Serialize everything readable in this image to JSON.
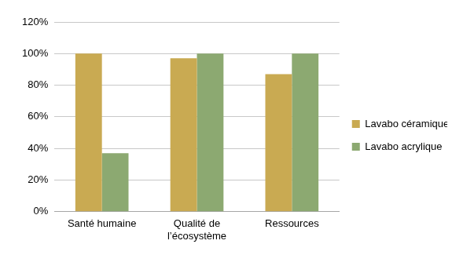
{
  "chart_data": {
    "type": "bar",
    "categories": [
      "Santé humaine",
      "Qualité de l’écosystème",
      "Ressources"
    ],
    "series": [
      {
        "name": "Lavabo céramique",
        "color": "#c9aa52",
        "values": [
          100,
          97,
          87
        ]
      },
      {
        "name": "Lavabo acrylique",
        "color": "#8ca971",
        "values": [
          37,
          100,
          100
        ]
      }
    ],
    "ylim": [
      0,
      120
    ],
    "yticks": [
      {
        "value": 0,
        "label": "0%"
      },
      {
        "value": 20,
        "label": "20%"
      },
      {
        "value": 40,
        "label": "40%"
      },
      {
        "value": 60,
        "label": "60%"
      },
      {
        "value": 80,
        "label": "80%"
      },
      {
        "value": 100,
        "label": "100%"
      },
      {
        "value": 120,
        "label": "120%"
      }
    ],
    "grid": true,
    "legend": "right"
  }
}
